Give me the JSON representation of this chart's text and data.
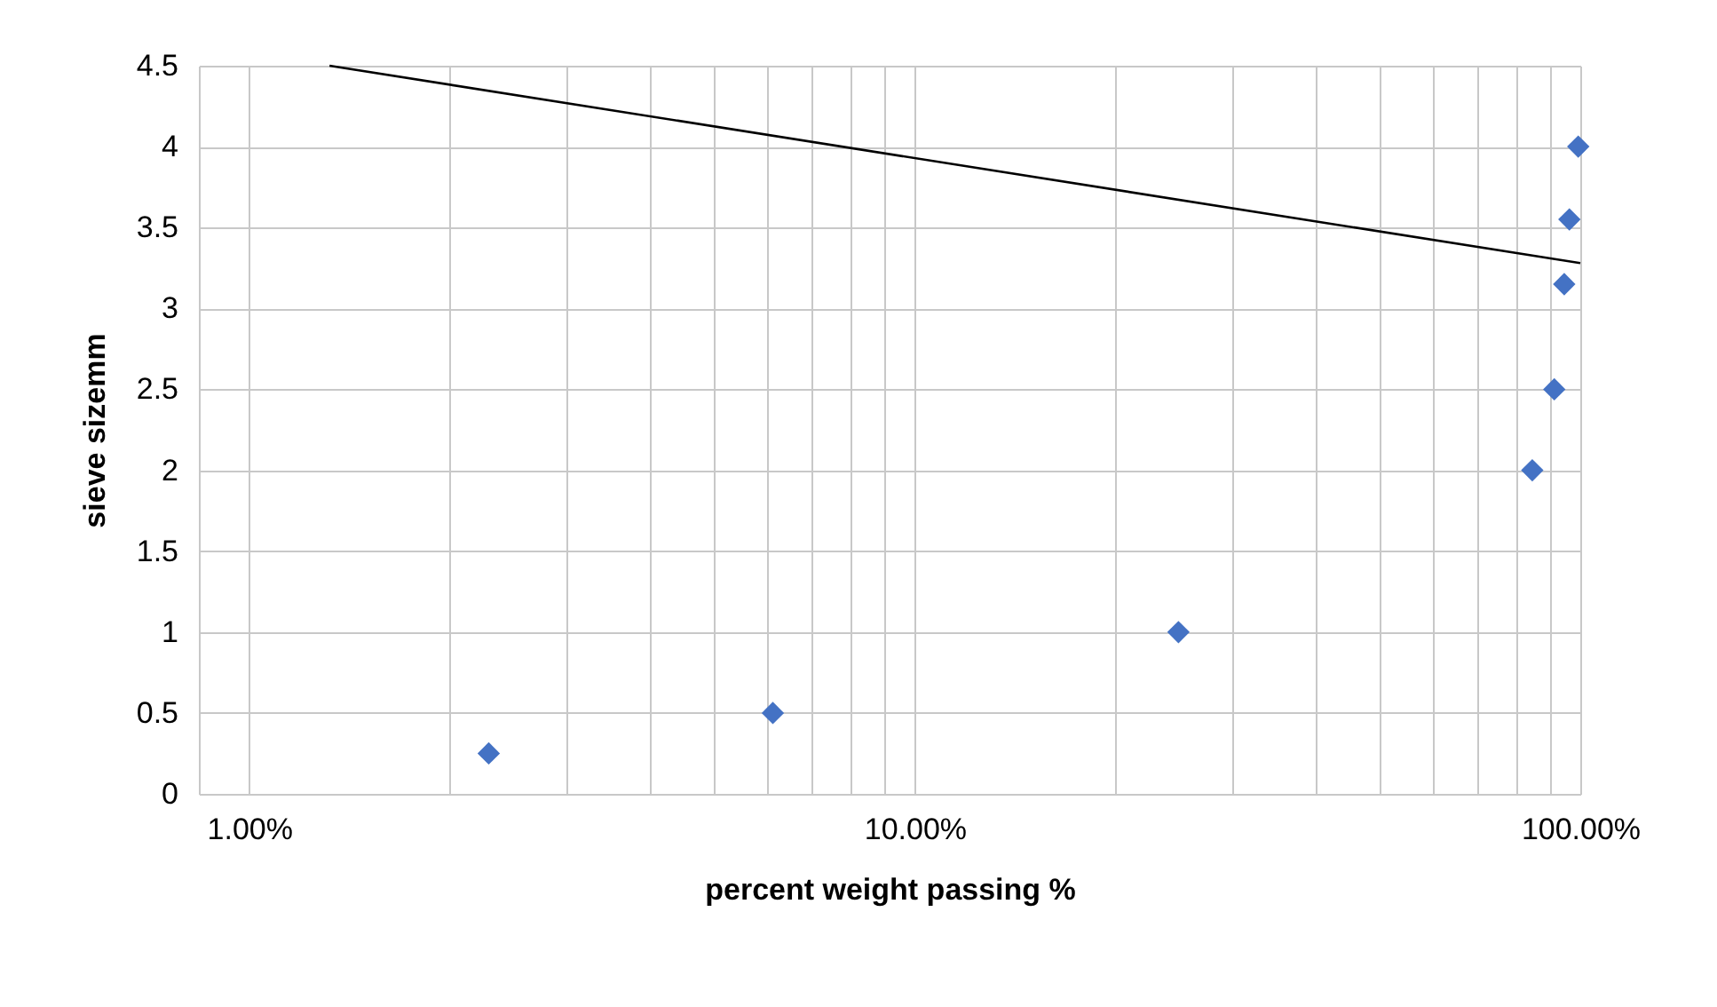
{
  "chart_data": {
    "type": "scatter",
    "xlabel": "percent   weight passing %",
    "ylabel": "sieve sizemm",
    "log": "x",
    "grid": true,
    "xlim": [
      0.84,
      100
    ],
    "xticks": [
      {
        "value": 1,
        "label": "1.00%"
      },
      {
        "value": 2,
        "label": null
      },
      {
        "value": 3,
        "label": null
      },
      {
        "value": 4,
        "label": null
      },
      {
        "value": 5,
        "label": null
      },
      {
        "value": 6,
        "label": null
      },
      {
        "value": 7,
        "label": null
      },
      {
        "value": 8,
        "label": null
      },
      {
        "value": 9,
        "label": null
      },
      {
        "value": 10,
        "label": "10.00%"
      },
      {
        "value": 20,
        "label": null
      },
      {
        "value": 30,
        "label": null
      },
      {
        "value": 40,
        "label": null
      },
      {
        "value": 50,
        "label": null
      },
      {
        "value": 60,
        "label": null
      },
      {
        "value": 70,
        "label": null
      },
      {
        "value": 80,
        "label": null
      },
      {
        "value": 90,
        "label": null
      },
      {
        "value": 100,
        "label": "100.00%"
      }
    ],
    "ylim": [
      0,
      4.5
    ],
    "yticks": [
      0,
      0.5,
      1,
      1.5,
      2,
      2.5,
      3,
      3.5,
      4,
      4.5
    ],
    "series": [
      {
        "type": "scatter",
        "marker": "diamond",
        "color": "#4472c4",
        "x": [
          2.29,
          6.12,
          24.9,
          84.7,
          91.4,
          94.6,
          96.3,
          99.3
        ],
        "values": [
          0.25,
          0.5,
          1,
          2,
          2.5,
          3.15,
          3.55,
          4
        ]
      },
      {
        "type": "line",
        "marker": "none",
        "color": "#000000",
        "x": [
          1.32,
          100
        ],
        "values": [
          4.5,
          3.28
        ]
      }
    ]
  }
}
